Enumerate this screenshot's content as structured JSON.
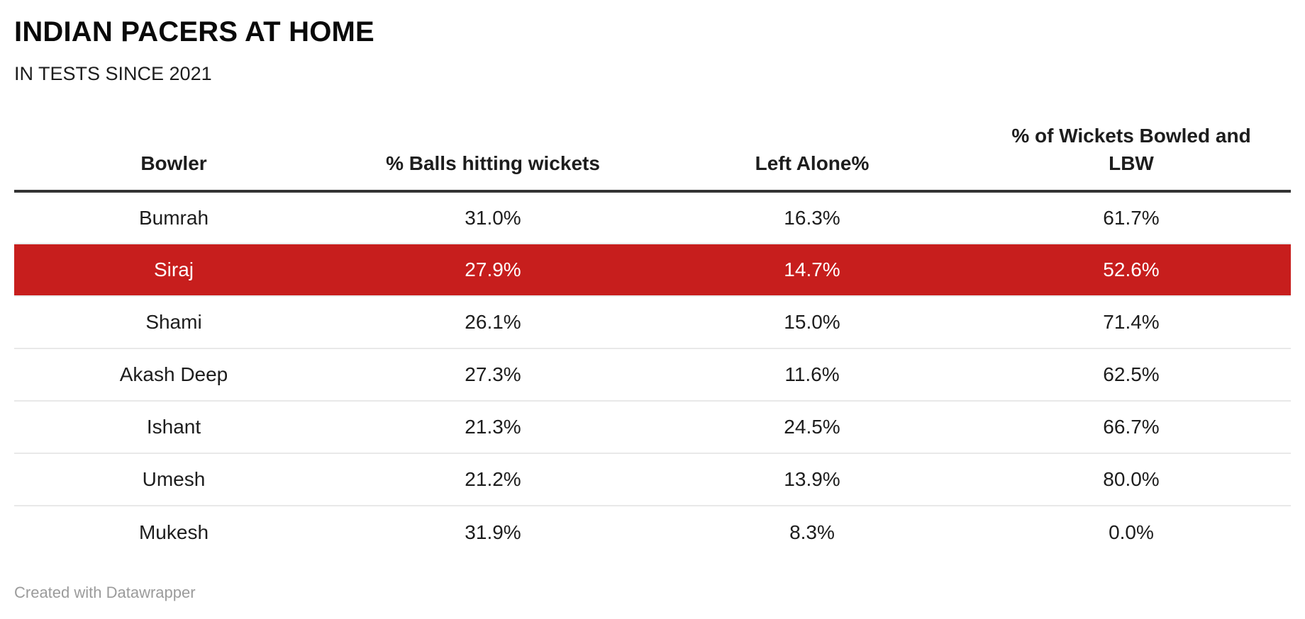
{
  "title": "INDIAN PACERS AT HOME",
  "subtitle": "IN TESTS SINCE 2021",
  "footer": {
    "credit": "Created with Datawrapper"
  },
  "colors": {
    "highlight_bg": "#c71e1d",
    "highlight_text": "#ffffff",
    "header_rule": "#333333",
    "row_divider": "#e9e9e9",
    "footer_text": "#9b9b9b"
  },
  "table": {
    "columns": [
      "Bowler",
      "% Balls hitting wickets",
      "Left Alone%",
      "% of Wickets Bowled and LBW"
    ],
    "rows": [
      {
        "cells": [
          "Bumrah",
          "31.0%",
          "16.3%",
          "61.7%"
        ],
        "highlight": false
      },
      {
        "cells": [
          "Siraj",
          "27.9%",
          "14.7%",
          "52.6%"
        ],
        "highlight": true
      },
      {
        "cells": [
          "Shami",
          "26.1%",
          "15.0%",
          "71.4%"
        ],
        "highlight": false
      },
      {
        "cells": [
          "Akash Deep",
          "27.3%",
          "11.6%",
          "62.5%"
        ],
        "highlight": false
      },
      {
        "cells": [
          "Ishant",
          "21.3%",
          "24.5%",
          "66.7%"
        ],
        "highlight": false
      },
      {
        "cells": [
          "Umesh",
          "21.2%",
          "13.9%",
          "80.0%"
        ],
        "highlight": false
      },
      {
        "cells": [
          "Mukesh",
          "31.9%",
          "8.3%",
          "0.0%"
        ],
        "highlight": false
      }
    ]
  },
  "chart_data": {
    "type": "table",
    "title": "INDIAN PACERS AT HOME",
    "subtitle": "IN TESTS SINCE 2021",
    "columns": [
      "Bowler",
      "% Balls hitting wickets",
      "Left Alone%",
      "% of Wickets Bowled and LBW"
    ],
    "rows": [
      [
        "Bumrah",
        31.0,
        16.3,
        61.7
      ],
      [
        "Siraj",
        27.9,
        14.7,
        52.6
      ],
      [
        "Shami",
        26.1,
        15.0,
        71.4
      ],
      [
        "Akash Deep",
        27.3,
        11.6,
        62.5
      ],
      [
        "Ishant",
        21.3,
        24.5,
        66.7
      ],
      [
        "Umesh",
        21.2,
        13.9,
        80.0
      ],
      [
        "Mukesh",
        31.9,
        8.3,
        0.0
      ]
    ],
    "units": "percent",
    "highlighted_row": "Siraj",
    "highlight_color": "#c71e1d",
    "credit": "Created with Datawrapper"
  }
}
